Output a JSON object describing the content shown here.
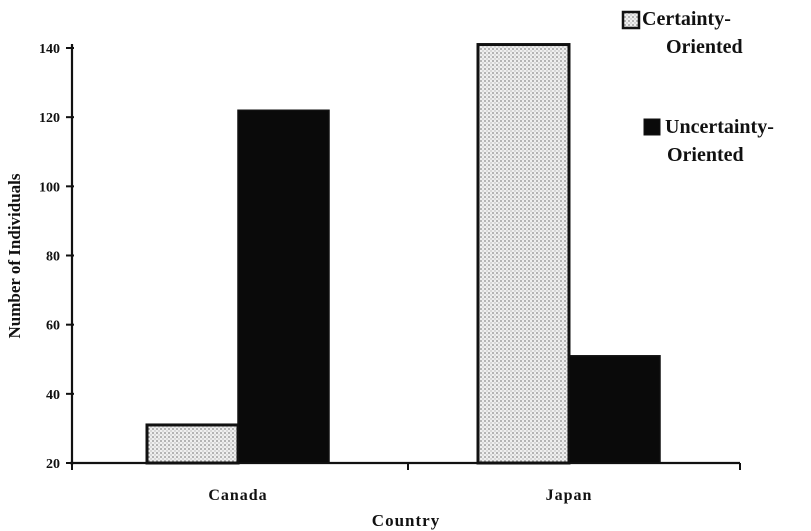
{
  "chart_data": {
    "type": "bar",
    "title": "",
    "xlabel": "Country",
    "ylabel": "Number of Individuals",
    "categories": [
      "Canada",
      "Japan"
    ],
    "series": [
      {
        "name": "Certainty-Oriented",
        "values": [
          31,
          141
        ],
        "color": "#d9d9d9",
        "pattern": "dotted"
      },
      {
        "name": "Uncertainty-Oriented",
        "values": [
          122,
          51
        ],
        "color": "#0a0a0a",
        "pattern": "solid"
      }
    ],
    "ylim": [
      20,
      140
    ],
    "yticks": [
      20,
      40,
      60,
      80,
      100,
      120,
      140
    ],
    "grid": false,
    "legend": "top-right"
  },
  "legend": {
    "items": [
      {
        "line1": "Certainty-",
        "line2": "Oriented"
      },
      {
        "line1": "Uncertainty-",
        "line2": "Oriented"
      }
    ]
  }
}
